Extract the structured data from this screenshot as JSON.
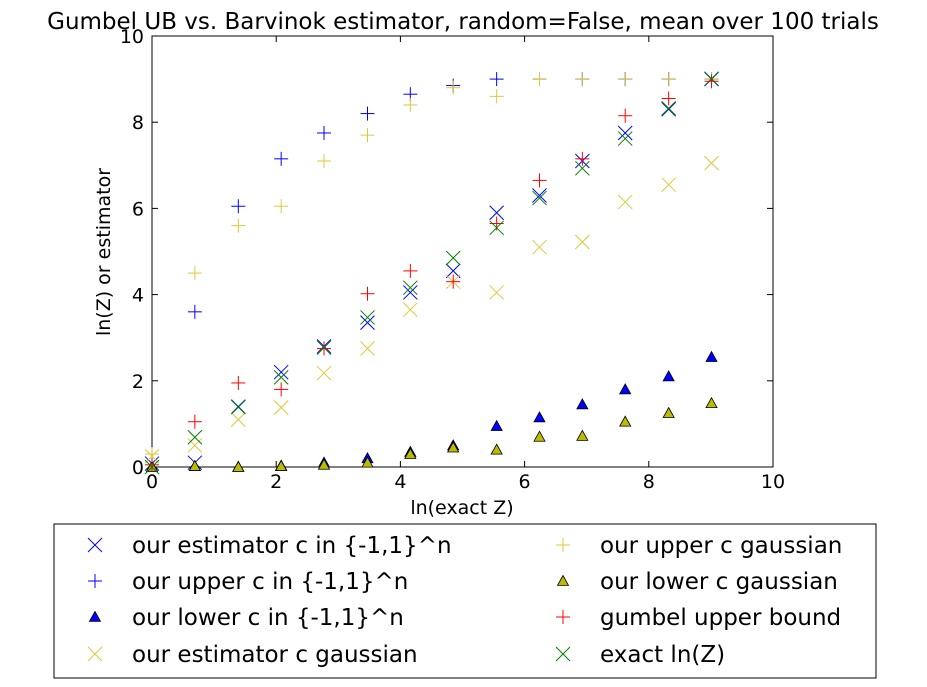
{
  "chart_data": {
    "type": "scatter",
    "title": "Gumbel UB vs. Barvinok estimator, random=False, mean over 100 trials",
    "xlabel": "ln(exact Z)",
    "ylabel": "ln(Z) or estimator",
    "xlim": [
      0,
      10
    ],
    "ylim": [
      0,
      10
    ],
    "xticks": [
      "0",
      "2",
      "4",
      "6",
      "8",
      "10"
    ],
    "yticks": [
      "0",
      "2",
      "4",
      "6",
      "8",
      "10"
    ],
    "grid": false,
    "legend_placement": "below",
    "x": [
      0.0,
      0.69,
      1.39,
      2.08,
      2.77,
      3.47,
      4.16,
      4.85,
      5.55,
      6.24,
      6.93,
      7.62,
      8.32,
      9.01
    ],
    "series": [
      {
        "name": "our estimator c in {-1,1}^n",
        "marker": "x",
        "color": "#0000ff",
        "values": [
          0.08,
          0.1,
          1.4,
          2.2,
          2.8,
          3.35,
          4.05,
          4.55,
          5.9,
          6.3,
          7.1,
          7.75,
          8.3,
          9.0
        ]
      },
      {
        "name": "our upper c in {-1,1}^n",
        "marker": "plus",
        "color": "#0000ff",
        "values": [
          null,
          3.6,
          6.05,
          7.15,
          7.75,
          8.2,
          8.65,
          8.85,
          9.0,
          9.0,
          9.0,
          9.0,
          9.0,
          9.0
        ]
      },
      {
        "name": "our lower c in {-1,1}^n",
        "marker": "triangle",
        "color": "#0000ff",
        "values": [
          0.0,
          0.02,
          0.0,
          0.03,
          0.1,
          0.2,
          0.35,
          0.5,
          0.95,
          1.15,
          1.45,
          1.8,
          2.1,
          2.55
        ]
      },
      {
        "name": "our estimator c gaussian",
        "marker": "x",
        "color": "#dcc83c",
        "values": [
          0.25,
          0.5,
          1.1,
          1.38,
          2.18,
          2.75,
          3.65,
          4.3,
          4.05,
          5.1,
          5.22,
          6.15,
          6.55,
          7.05
        ]
      },
      {
        "name": "our upper c gaussian",
        "marker": "plus",
        "color": "#dcc83c",
        "values": [
          0.3,
          4.5,
          5.6,
          6.05,
          7.1,
          7.7,
          8.4,
          8.8,
          8.6,
          9.0,
          9.0,
          9.0,
          9.0,
          9.0
        ]
      },
      {
        "name": "our lower c gaussian",
        "marker": "triangle",
        "color": "#bbbb00",
        "values": [
          0.0,
          0.02,
          0.0,
          0.02,
          0.05,
          0.1,
          0.3,
          0.45,
          0.4,
          0.7,
          0.72,
          1.05,
          1.25,
          1.48
        ]
      },
      {
        "name": "gumbel upper bound",
        "marker": "plus",
        "color": "#ff0000",
        "values": [
          0.05,
          1.05,
          1.95,
          1.8,
          2.75,
          4.02,
          4.55,
          4.3,
          5.65,
          6.65,
          7.15,
          8.15,
          8.55,
          8.95
        ]
      },
      {
        "name": "exact ln(Z)",
        "marker": "x",
        "color": "#008000",
        "values": [
          0.0,
          0.69,
          1.39,
          2.08,
          2.77,
          3.47,
          4.16,
          4.85,
          5.55,
          6.24,
          6.93,
          7.62,
          8.32,
          9.01
        ]
      }
    ]
  }
}
